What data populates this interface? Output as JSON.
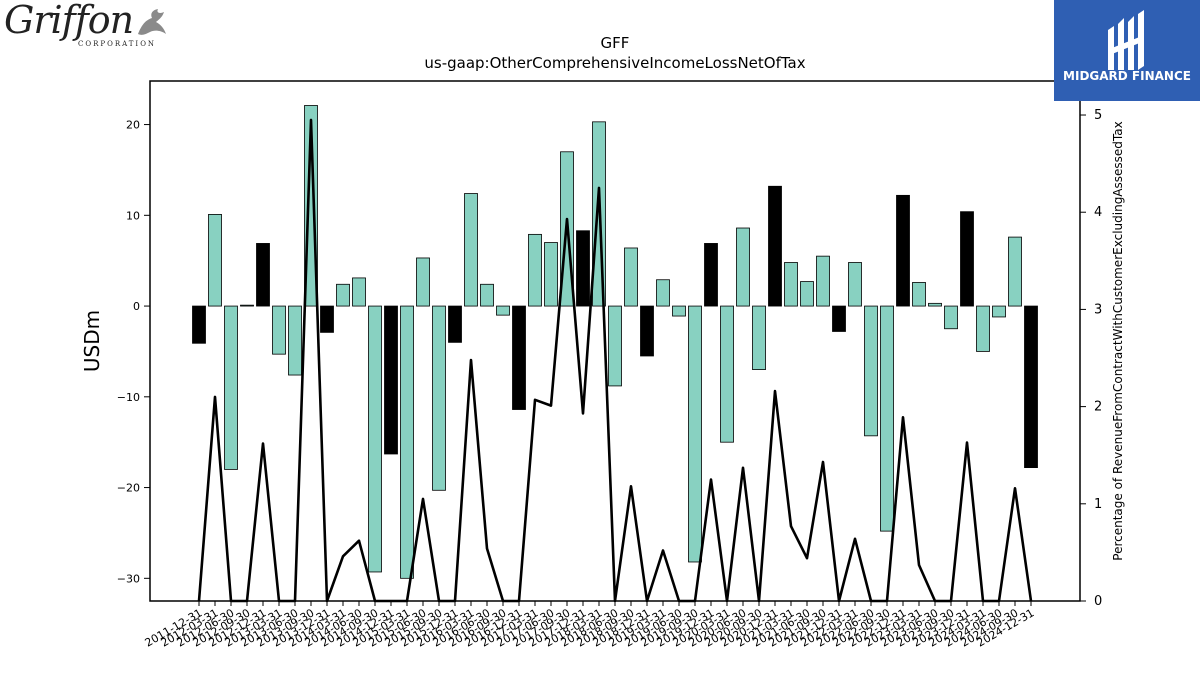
{
  "branding": {
    "left_logo_text": "Griffon",
    "left_logo_sub": "CORPORATION",
    "right_logo_text": "MIDGARD FINANCE"
  },
  "chart_data": {
    "type": "bar",
    "title": "GFF",
    "subtitle": "us-gaap:OtherComprehensiveIncomeLossNetOfTax",
    "ylabel": "USDm",
    "y2label": "Percentage of RevenueFromContractWithCustomerExcludingAssessedTax",
    "ylim": [
      -32.5,
      24.8
    ],
    "y2lim": [
      0,
      5.35
    ],
    "yticks": [
      -30,
      -20,
      -10,
      0,
      10,
      20
    ],
    "y2ticks": [
      0,
      1,
      2,
      3,
      4,
      5
    ],
    "colors": {
      "positive_quarter": "#88d1c1",
      "fiscal_year_end": "#000000",
      "line": "#000000"
    },
    "categories": [
      "2011-12-31",
      "2012-03-31",
      "2012-06-30",
      "2012-09-30",
      "2012-12-31",
      "2013-03-31",
      "2013-06-30",
      "2013-09-30",
      "2013-12-31",
      "2014-03-31",
      "2014-06-30",
      "2014-09-30",
      "2014-12-31",
      "2015-03-31",
      "2015-06-30",
      "2015-09-30",
      "2015-12-31",
      "2016-03-31",
      "2016-06-30",
      "2016-09-30",
      "2016-12-31",
      "2017-03-31",
      "2017-06-30",
      "2017-09-30",
      "2017-12-31",
      "2018-03-31",
      "2018-06-30",
      "2018-09-30",
      "2018-12-31",
      "2019-03-31",
      "2019-06-30",
      "2019-09-30",
      "2019-12-31",
      "2020-03-31",
      "2020-06-30",
      "2020-09-30",
      "2020-12-31",
      "2021-03-31",
      "2021-06-30",
      "2021-09-30",
      "2021-12-31",
      "2022-03-31",
      "2022-06-30",
      "2022-09-30",
      "2022-12-31",
      "2023-03-31",
      "2023-06-30",
      "2023-09-30",
      "2023-12-31",
      "2024-03-31",
      "2024-06-30",
      "2024-09-30",
      "2024-12-31"
    ],
    "series": [
      {
        "kind": "bar",
        "values": [
          -4.1,
          10.1,
          -18.0,
          0.1,
          6.9,
          -5.3,
          -7.6,
          22.1,
          -2.9,
          2.4,
          3.1,
          -29.3,
          -16.3,
          -30.0,
          5.3,
          -20.3,
          -4.0,
          12.4,
          2.4,
          -1.0,
          -11.4,
          7.9,
          7.0,
          17.0,
          8.3,
          20.3,
          -8.8,
          6.4,
          -5.5,
          2.9,
          -1.1,
          -28.2,
          6.9,
          -15.0,
          8.6,
          -7.0,
          13.2,
          4.8,
          2.7,
          5.5,
          -2.8,
          4.8,
          -14.3,
          -24.8,
          12.2,
          2.6,
          0.3,
          -2.5,
          10.4,
          -5.0,
          -1.2,
          7.6,
          -17.8
        ],
        "fiscal_year_end": [
          true,
          false,
          false,
          false,
          true,
          false,
          false,
          false,
          true,
          false,
          false,
          false,
          true,
          false,
          false,
          false,
          true,
          false,
          false,
          false,
          true,
          false,
          false,
          false,
          true,
          false,
          false,
          false,
          true,
          false,
          false,
          false,
          true,
          false,
          false,
          false,
          true,
          false,
          false,
          false,
          true,
          false,
          false,
          false,
          true,
          false,
          false,
          false,
          true,
          false,
          false,
          false,
          true
        ]
      },
      {
        "kind": "line",
        "axis": "right",
        "values": [
          0,
          2.1,
          0,
          0,
          1.62,
          0,
          0,
          4.95,
          0,
          0.46,
          0.62,
          0,
          0,
          0,
          1.05,
          0,
          0,
          2.48,
          0.54,
          0,
          0,
          2.07,
          2.01,
          3.93,
          1.93,
          4.25,
          0,
          1.18,
          0,
          0.52,
          0,
          0,
          1.25,
          0,
          1.37,
          0,
          2.16,
          0.77,
          0.44,
          1.43,
          0,
          0.64,
          0,
          0,
          1.89,
          0.37,
          0,
          0,
          1.63,
          0,
          0,
          1.16,
          0
        ]
      }
    ]
  }
}
